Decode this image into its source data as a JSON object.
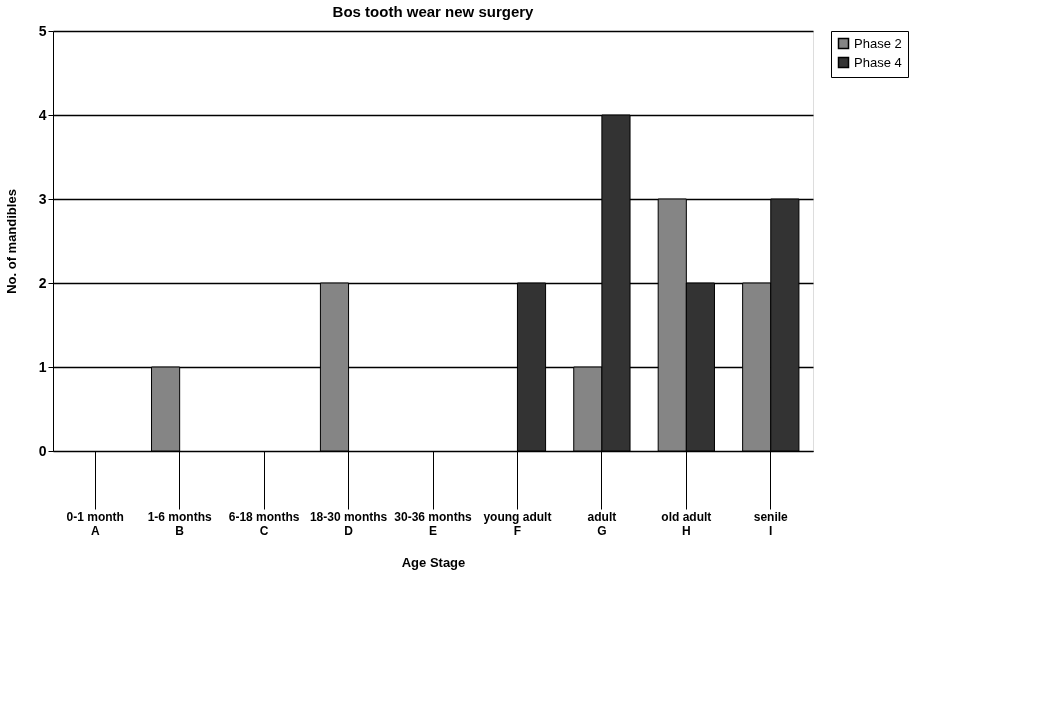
{
  "chart_data": {
    "type": "bar",
    "title": "Bos tooth wear new surgery",
    "xlabel": "Age Stage",
    "ylabel": "No. of mandibles",
    "categories": [
      "0-1 month\nA",
      "1-6 months\nB",
      "6-18 months\nC",
      "18-30 months\nD",
      "30-36 months\nE",
      "young adult\nF",
      "adult\nG",
      "old adult\nH",
      "senile\nI"
    ],
    "series": [
      {
        "name": "Phase 2",
        "color": "#858585",
        "values": [
          0,
          1,
          0,
          2,
          0,
          0,
          1,
          3,
          2
        ]
      },
      {
        "name": "Phase 4",
        "color": "#333333",
        "values": [
          0,
          0,
          0,
          0,
          0,
          2,
          4,
          2,
          3
        ]
      }
    ],
    "ylim": [
      0,
      5
    ],
    "yticks": [
      0,
      1,
      2,
      3,
      4,
      5
    ],
    "grid": "y",
    "legend": "right"
  }
}
